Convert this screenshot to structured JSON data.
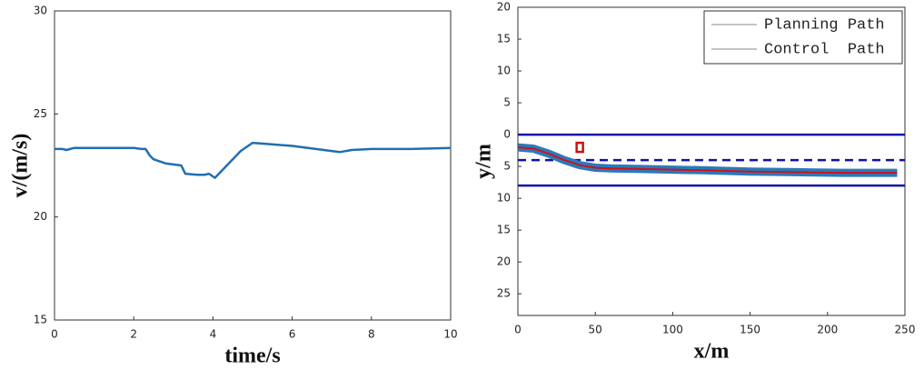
{
  "chart_data": [
    {
      "type": "line",
      "xlabel": "time/s",
      "ylabel": "v/(m/s)",
      "xlim": [
        0,
        10
      ],
      "xticks": [
        0,
        2,
        4,
        6,
        8,
        10
      ],
      "ylim": [
        15,
        30
      ],
      "yticks": [
        15,
        20,
        25,
        30
      ],
      "series": [
        {
          "color": "#1f6fb2",
          "x": [
            0,
            0.2,
            0.3,
            0.5,
            1.0,
            1.5,
            2.0,
            2.2,
            2.3,
            2.4,
            2.5,
            2.8,
            3.2,
            3.3,
            3.6,
            3.8,
            3.9,
            4.05,
            4.3,
            4.7,
            5.0,
            6.0,
            7.2,
            7.5,
            8.0,
            9.0,
            10.0
          ],
          "values": [
            23.3,
            23.3,
            23.25,
            23.35,
            23.35,
            23.35,
            23.35,
            23.3,
            23.3,
            23.0,
            22.8,
            22.6,
            22.5,
            22.1,
            22.05,
            22.05,
            22.1,
            21.9,
            22.4,
            23.2,
            23.6,
            23.45,
            23.15,
            23.25,
            23.3,
            23.3,
            23.35
          ]
        }
      ]
    },
    {
      "type": "line",
      "xlabel": "x/m",
      "ylabel": "y/m",
      "xlim": [
        0,
        250
      ],
      "xticks": [
        0,
        50,
        100,
        150,
        200,
        250
      ],
      "ylim": [
        -28.4,
        20
      ],
      "yticks": [
        20,
        15,
        10,
        5,
        0,
        {
          "value": -5,
          "label": "5"
        },
        {
          "value": -10,
          "label": "10"
        },
        {
          "value": -15,
          "label": "15"
        },
        {
          "value": -20,
          "label": "20"
        },
        {
          "value": -25,
          "label": "25"
        }
      ],
      "lane_lines": [
        0,
        -4,
        -8
      ],
      "lane_dashed": [
        false,
        true,
        false
      ],
      "lane_color": "#1010a8",
      "obstacle": {
        "x": 40,
        "y": -2,
        "color": "#d01010"
      },
      "legend": "upper right",
      "series": [
        {
          "name": "Planning Path",
          "color": "#2a7ab8",
          "width": 9,
          "x": [
            0,
            10,
            20,
            30,
            40,
            50,
            60,
            80,
            100,
            120,
            150,
            180,
            210,
            245
          ],
          "values": [
            -2,
            -2.2,
            -3,
            -4,
            -4.8,
            -5.2,
            -5.3,
            -5.4,
            -5.5,
            -5.6,
            -5.8,
            -5.9,
            -6,
            -6
          ]
        },
        {
          "name": "Control  Path",
          "color": "#d01020",
          "width": 2,
          "x": [
            0,
            10,
            20,
            30,
            40,
            50,
            60,
            80,
            100,
            120,
            150,
            180,
            210,
            245
          ],
          "values": [
            -2,
            -2.2,
            -3,
            -4,
            -4.8,
            -5.2,
            -5.3,
            -5.4,
            -5.5,
            -5.6,
            -5.8,
            -5.9,
            -6,
            -6
          ]
        }
      ]
    }
  ]
}
